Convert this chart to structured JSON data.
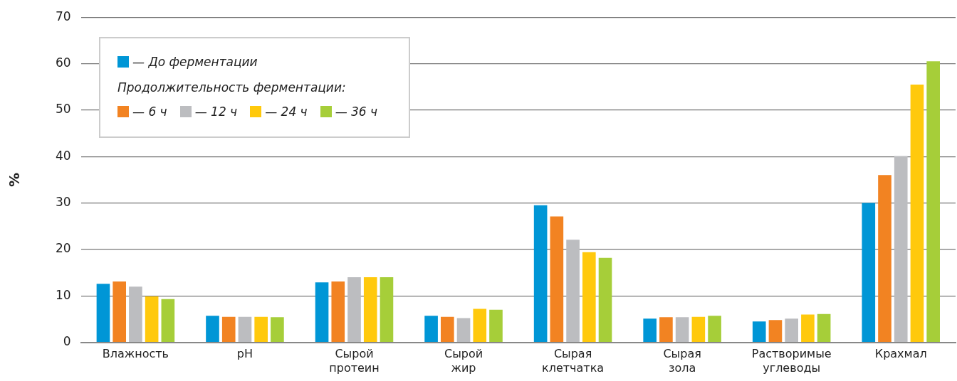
{
  "chart_data": {
    "type": "bar",
    "ylabel": "%",
    "legend_title": "Продолжительность ферментации:",
    "legend": "top left",
    "grid": "y",
    "categories": [
      "Влажность",
      "pH",
      "Сырой протеин",
      "Сырой жир",
      "Сырая клетчатка",
      "Сырая зола",
      "Растворимые углеводы",
      "Крахмал"
    ],
    "ylim": [
      0,
      70
    ],
    "yticks": [
      0,
      10,
      20,
      30,
      40,
      50,
      60,
      70
    ],
    "series": [
      {
        "name": "— До ферментации",
        "color": "#0096d6",
        "values": [
          12.6,
          5.7,
          12.9,
          5.7,
          29.5,
          5.1,
          4.5,
          30.0
        ]
      },
      {
        "name": "— 6 ч",
        "color": "#f28322",
        "values": [
          13.1,
          5.5,
          13.1,
          5.5,
          27.1,
          5.4,
          4.8,
          36.0
        ]
      },
      {
        "name": "— 12 ч",
        "color": "#bcbdc0",
        "values": [
          12.0,
          5.5,
          14.0,
          5.2,
          22.1,
          5.4,
          5.1,
          40.1
        ]
      },
      {
        "name": "— 24 ч",
        "color": "#ffc90c",
        "values": [
          9.9,
          5.5,
          14.0,
          7.2,
          19.4,
          5.5,
          6.0,
          55.5
        ]
      },
      {
        "name": "— 36 ч",
        "color": "#a6ce39",
        "values": [
          9.3,
          5.4,
          14.0,
          7.0,
          18.2,
          5.7,
          6.1,
          60.5
        ]
      }
    ]
  }
}
